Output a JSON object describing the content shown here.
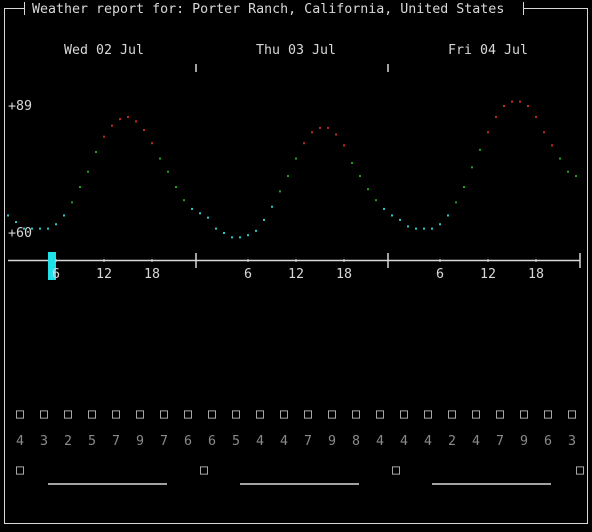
{
  "header": {
    "title": "Weather report for: Porter Ranch, California, United States"
  },
  "chart_data": {
    "type": "line",
    "days": [
      "Wed 02 Jul",
      "Thu 03 Jul",
      "Fri 04 Jul"
    ],
    "x": [
      0,
      1,
      2,
      3,
      4,
      5,
      6,
      7,
      8,
      9,
      10,
      11,
      12,
      13,
      14,
      15,
      16,
      17,
      18,
      19,
      20,
      21,
      22,
      23,
      24,
      25,
      26,
      27,
      28,
      29,
      30,
      31,
      32,
      33,
      34,
      35,
      36,
      37,
      38,
      39,
      40,
      41,
      42,
      43,
      44,
      45,
      46,
      47,
      48,
      49,
      50,
      51,
      52,
      53,
      54,
      55,
      56,
      57,
      58,
      59,
      60,
      61,
      62,
      63,
      64,
      65,
      66,
      67,
      68,
      69,
      70,
      71
    ],
    "values": [
      64,
      62.5,
      61,
      61,
      61,
      61,
      62,
      64,
      67,
      70.5,
      74,
      78.5,
      82,
      84.5,
      86,
      86.5,
      85.5,
      83.5,
      80.5,
      77,
      74,
      70.5,
      67.5,
      65.5,
      64.5,
      63.5,
      61,
      60,
      59,
      59,
      59.5,
      60.5,
      63,
      66,
      69.5,
      73,
      77,
      80.5,
      83,
      84,
      84,
      82.5,
      80,
      76,
      73,
      70,
      67.5,
      65.5,
      64,
      63,
      61.5,
      61,
      61,
      61,
      62,
      64,
      67,
      70.5,
      75,
      79,
      83,
      86.5,
      89,
      90,
      90,
      89,
      86.5,
      83,
      80,
      77,
      74,
      73
    ],
    "thresholds": [
      67,
      80
    ],
    "colors": [
      "#2ec8c8",
      "#20a020",
      "#c02828"
    ],
    "xlim": [
      0,
      72
    ],
    "ylim": [
      60,
      89
    ],
    "yticks": [
      {
        "value": 89,
        "label": "+89"
      },
      {
        "value": 60,
        "label": "+60"
      }
    ],
    "xticks": [
      {
        "value": 6,
        "label": "6"
      },
      {
        "value": 12,
        "label": "12"
      },
      {
        "value": 18,
        "label": "18"
      },
      {
        "value": 30,
        "label": "6"
      },
      {
        "value": 36,
        "label": "12"
      },
      {
        "value": 42,
        "label": "18"
      },
      {
        "value": 54,
        "label": "6"
      },
      {
        "value": 60,
        "label": "12"
      },
      {
        "value": 66,
        "label": "18"
      }
    ]
  },
  "forecast": {
    "icons": [
      "□",
      "□",
      "□",
      "□",
      "□",
      "□",
      "□",
      "□",
      "□",
      "□",
      "□",
      "□",
      "□",
      "□",
      "□",
      "□",
      "□",
      "□",
      "□",
      "□",
      "□",
      "□",
      "□",
      "□"
    ],
    "values": [
      "4",
      "3",
      "2",
      "5",
      "7",
      "9",
      "7",
      "6",
      "6",
      "5",
      "4",
      "4",
      "7",
      "9",
      "8",
      "4",
      "4",
      "4",
      "2",
      "4",
      "7",
      "9",
      "6",
      "3"
    ]
  },
  "moon": [
    "□",
    "□",
    "□",
    "□"
  ]
}
